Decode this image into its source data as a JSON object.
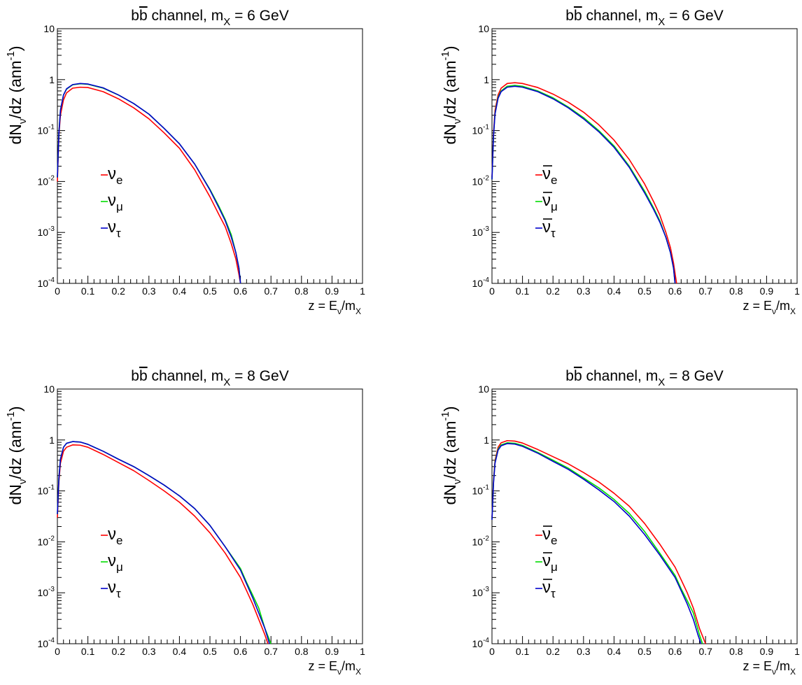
{
  "chart_data": [
    {
      "type": "line",
      "panel": "top-left",
      "title_left": "b",
      "title_bar": "b",
      "title_mid": " channel, m",
      "title_sub": "X",
      "title_right": " = 6 GeV",
      "ylabel_main": "dN",
      "ylabel_sub": "ν",
      "ylabel_rest": "/dz (ann",
      "ylabel_sup": "-1",
      "ylabel_end": ")",
      "xlabel_main": "z = E",
      "xlabel_sub1": "ν",
      "xlabel_mid": "/m",
      "xlabel_sub2": "X",
      "y_scale": "log",
      "xlim": [
        0,
        1
      ],
      "ylim": [
        0.0001,
        10
      ],
      "x_ticks": [
        "0",
        "0.1",
        "0.2",
        "0.3",
        "0.4",
        "0.5",
        "0.6",
        "0.7",
        "0.8",
        "0.9",
        "1"
      ],
      "y_ticks": [
        {
          "base": "10",
          "exp": "-4"
        },
        {
          "base": "10",
          "exp": "-3"
        },
        {
          "base": "10",
          "exp": "-2"
        },
        {
          "base": "10",
          "exp": "-1"
        },
        {
          "base": "1",
          "exp": ""
        },
        {
          "base": "10",
          "exp": ""
        }
      ],
      "legend_position": "lower-left",
      "series": [
        {
          "name": "νe",
          "sym": "ν",
          "sub": "e",
          "bar": false,
          "color": "#ff0000",
          "x": [
            0.0,
            0.005,
            0.01,
            0.02,
            0.03,
            0.05,
            0.075,
            0.1,
            0.15,
            0.2,
            0.25,
            0.3,
            0.35,
            0.4,
            0.45,
            0.5,
            0.53,
            0.55,
            0.57,
            0.585,
            0.595,
            0.6
          ],
          "y": [
            0.01,
            0.08,
            0.2,
            0.4,
            0.55,
            0.68,
            0.71,
            0.7,
            0.58,
            0.42,
            0.28,
            0.17,
            0.09,
            0.045,
            0.017,
            0.005,
            0.0022,
            0.0013,
            0.0006,
            0.0003,
            0.00015,
            0.0001
          ]
        },
        {
          "name": "νμ",
          "sym": "ν",
          "sub": "μ",
          "bar": false,
          "color": "#00dd00",
          "x": [
            0.0,
            0.005,
            0.01,
            0.02,
            0.03,
            0.05,
            0.075,
            0.1,
            0.15,
            0.2,
            0.25,
            0.3,
            0.35,
            0.4,
            0.45,
            0.5,
            0.53,
            0.55,
            0.57,
            0.585,
            0.595,
            0.6
          ],
          "y": [
            0.012,
            0.09,
            0.25,
            0.5,
            0.65,
            0.79,
            0.83,
            0.81,
            0.68,
            0.5,
            0.34,
            0.21,
            0.11,
            0.055,
            0.022,
            0.007,
            0.0032,
            0.0018,
            0.0009,
            0.0004,
            0.0002,
            0.0001
          ]
        },
        {
          "name": "ντ",
          "sym": "ν",
          "sub": "τ",
          "bar": false,
          "color": "#0000cc",
          "x": [
            0.0,
            0.005,
            0.01,
            0.02,
            0.03,
            0.05,
            0.075,
            0.1,
            0.15,
            0.2,
            0.25,
            0.3,
            0.35,
            0.4,
            0.45,
            0.5,
            0.53,
            0.55,
            0.57,
            0.585,
            0.595,
            0.6
          ],
          "y": [
            0.012,
            0.09,
            0.25,
            0.5,
            0.66,
            0.8,
            0.84,
            0.82,
            0.69,
            0.5,
            0.34,
            0.21,
            0.11,
            0.055,
            0.022,
            0.0068,
            0.003,
            0.0017,
            0.0008,
            0.0004,
            0.0002,
            0.0001
          ]
        }
      ]
    },
    {
      "type": "line",
      "panel": "top-right",
      "title_left": "b",
      "title_bar": "b",
      "title_mid": " channel, m",
      "title_sub": "X",
      "title_right": " = 6 GeV",
      "ylabel_main": "dN",
      "ylabel_sub": "ν",
      "ylabel_rest": "/dz (ann",
      "ylabel_sup": "-1",
      "ylabel_end": ")",
      "xlabel_main": "z = E",
      "xlabel_sub1": "ν",
      "xlabel_mid": "/m",
      "xlabel_sub2": "X",
      "y_scale": "log",
      "xlim": [
        0,
        1
      ],
      "ylim": [
        0.0001,
        10
      ],
      "x_ticks": [
        "0",
        "0.1",
        "0.2",
        "0.3",
        "0.4",
        "0.5",
        "0.6",
        "0.7",
        "0.8",
        "0.9",
        "1"
      ],
      "y_ticks": [
        {
          "base": "10",
          "exp": "-4"
        },
        {
          "base": "10",
          "exp": "-3"
        },
        {
          "base": "10",
          "exp": "-2"
        },
        {
          "base": "10",
          "exp": "-1"
        },
        {
          "base": "1",
          "exp": ""
        },
        {
          "base": "10",
          "exp": ""
        }
      ],
      "legend_position": "lower-left",
      "series": [
        {
          "name": "ν̄e",
          "sym": "ν",
          "sub": "e",
          "bar": true,
          "color": "#ff0000",
          "x": [
            0.0,
            0.005,
            0.01,
            0.02,
            0.03,
            0.05,
            0.075,
            0.1,
            0.15,
            0.2,
            0.25,
            0.3,
            0.35,
            0.4,
            0.45,
            0.5,
            0.53,
            0.55,
            0.57,
            0.585,
            0.595,
            0.605
          ],
          "y": [
            0.012,
            0.09,
            0.25,
            0.5,
            0.68,
            0.84,
            0.87,
            0.84,
            0.7,
            0.52,
            0.36,
            0.23,
            0.13,
            0.065,
            0.027,
            0.009,
            0.004,
            0.0022,
            0.001,
            0.0005,
            0.00025,
            0.0001
          ]
        },
        {
          "name": "ν̄μ",
          "sym": "ν",
          "sub": "μ",
          "bar": true,
          "color": "#00dd00",
          "x": [
            0.0,
            0.005,
            0.01,
            0.02,
            0.03,
            0.05,
            0.075,
            0.1,
            0.15,
            0.2,
            0.25,
            0.3,
            0.35,
            0.4,
            0.45,
            0.5,
            0.53,
            0.55,
            0.57,
            0.585,
            0.595,
            0.6
          ],
          "y": [
            0.011,
            0.08,
            0.22,
            0.45,
            0.6,
            0.74,
            0.77,
            0.74,
            0.6,
            0.44,
            0.29,
            0.18,
            0.1,
            0.05,
            0.02,
            0.0065,
            0.003,
            0.0017,
            0.0008,
            0.0004,
            0.0002,
            0.0001
          ]
        },
        {
          "name": "ν̄τ",
          "sym": "ν",
          "sub": "τ",
          "bar": true,
          "color": "#0000cc",
          "x": [
            0.0,
            0.005,
            0.01,
            0.02,
            0.03,
            0.05,
            0.075,
            0.1,
            0.15,
            0.2,
            0.25,
            0.3,
            0.35,
            0.4,
            0.45,
            0.5,
            0.53,
            0.55,
            0.57,
            0.585,
            0.595,
            0.6
          ],
          "y": [
            0.011,
            0.078,
            0.21,
            0.43,
            0.58,
            0.71,
            0.74,
            0.71,
            0.58,
            0.42,
            0.28,
            0.17,
            0.095,
            0.047,
            0.019,
            0.006,
            0.0028,
            0.0016,
            0.0008,
            0.0004,
            0.0002,
            0.0001
          ]
        }
      ]
    },
    {
      "type": "line",
      "panel": "bottom-left",
      "title_left": "b",
      "title_bar": "b",
      "title_mid": " channel, m",
      "title_sub": "X",
      "title_right": " = 8 GeV",
      "ylabel_main": "dN",
      "ylabel_sub": "ν",
      "ylabel_rest": "/dz (ann",
      "ylabel_sup": "-1",
      "ylabel_end": ")",
      "xlabel_main": "z = E",
      "xlabel_sub1": "ν",
      "xlabel_mid": "/m",
      "xlabel_sub2": "X",
      "y_scale": "log",
      "xlim": [
        0,
        1
      ],
      "ylim": [
        0.0001,
        10
      ],
      "x_ticks": [
        "0",
        "0.1",
        "0.2",
        "0.3",
        "0.4",
        "0.5",
        "0.6",
        "0.7",
        "0.8",
        "0.9",
        "1"
      ],
      "y_ticks": [
        {
          "base": "10",
          "exp": "-4"
        },
        {
          "base": "10",
          "exp": "-3"
        },
        {
          "base": "10",
          "exp": "-2"
        },
        {
          "base": "10",
          "exp": "-1"
        },
        {
          "base": "1",
          "exp": ""
        },
        {
          "base": "10",
          "exp": ""
        }
      ],
      "legend_position": "lower-left",
      "series": [
        {
          "name": "νe",
          "sym": "ν",
          "sub": "e",
          "bar": false,
          "color": "#ff0000",
          "x": [
            0.0,
            0.005,
            0.01,
            0.02,
            0.03,
            0.05,
            0.075,
            0.1,
            0.15,
            0.2,
            0.25,
            0.3,
            0.35,
            0.4,
            0.45,
            0.5,
            0.55,
            0.6,
            0.62,
            0.64,
            0.66,
            0.68,
            0.69
          ],
          "y": [
            0.03,
            0.15,
            0.35,
            0.6,
            0.72,
            0.8,
            0.79,
            0.72,
            0.52,
            0.36,
            0.25,
            0.16,
            0.1,
            0.06,
            0.032,
            0.015,
            0.006,
            0.002,
            0.0011,
            0.0006,
            0.0003,
            0.00015,
            0.0001
          ]
        },
        {
          "name": "νμ",
          "sym": "ν",
          "sub": "μ",
          "bar": false,
          "color": "#00dd00",
          "x": [
            0.0,
            0.005,
            0.01,
            0.02,
            0.03,
            0.05,
            0.075,
            0.1,
            0.15,
            0.2,
            0.25,
            0.3,
            0.35,
            0.4,
            0.45,
            0.5,
            0.55,
            0.6,
            0.62,
            0.64,
            0.66,
            0.68,
            0.7
          ],
          "y": [
            0.035,
            0.18,
            0.42,
            0.72,
            0.86,
            0.93,
            0.91,
            0.82,
            0.6,
            0.42,
            0.3,
            0.2,
            0.13,
            0.08,
            0.045,
            0.021,
            0.008,
            0.003,
            0.0016,
            0.0009,
            0.0005,
            0.0002,
            0.0001
          ]
        },
        {
          "name": "ντ",
          "sym": "ν",
          "sub": "τ",
          "bar": false,
          "color": "#0000cc",
          "x": [
            0.0,
            0.005,
            0.01,
            0.02,
            0.03,
            0.05,
            0.075,
            0.1,
            0.15,
            0.2,
            0.25,
            0.3,
            0.35,
            0.4,
            0.45,
            0.5,
            0.55,
            0.6,
            0.62,
            0.64,
            0.66,
            0.68,
            0.695
          ],
          "y": [
            0.035,
            0.18,
            0.42,
            0.72,
            0.86,
            0.93,
            0.91,
            0.82,
            0.6,
            0.42,
            0.3,
            0.2,
            0.13,
            0.08,
            0.045,
            0.021,
            0.008,
            0.0028,
            0.0015,
            0.0008,
            0.0004,
            0.0002,
            0.0001
          ]
        }
      ]
    },
    {
      "type": "line",
      "panel": "bottom-right",
      "title_left": "b",
      "title_bar": "b",
      "title_mid": " channel, m",
      "title_sub": "X",
      "title_right": " = 8 GeV",
      "ylabel_main": "dN",
      "ylabel_sub": "ν",
      "ylabel_rest": "/dz (ann",
      "ylabel_sup": "-1",
      "ylabel_end": ")",
      "xlabel_main": "z = E",
      "xlabel_sub1": "ν",
      "xlabel_mid": "/m",
      "xlabel_sub2": "X",
      "y_scale": "log",
      "xlim": [
        0,
        1
      ],
      "ylim": [
        0.0001,
        10
      ],
      "x_ticks": [
        "0",
        "0.1",
        "0.2",
        "0.3",
        "0.4",
        "0.5",
        "0.6",
        "0.7",
        "0.8",
        "0.9",
        "1"
      ],
      "y_ticks": [
        {
          "base": "10",
          "exp": "-4"
        },
        {
          "base": "10",
          "exp": "-3"
        },
        {
          "base": "10",
          "exp": "-2"
        },
        {
          "base": "10",
          "exp": "-1"
        },
        {
          "base": "1",
          "exp": ""
        },
        {
          "base": "10",
          "exp": ""
        }
      ],
      "legend_position": "lower-left",
      "series": [
        {
          "name": "ν̄e",
          "sym": "ν",
          "sub": "e",
          "bar": true,
          "color": "#ff0000",
          "x": [
            0.0,
            0.005,
            0.01,
            0.02,
            0.03,
            0.05,
            0.075,
            0.1,
            0.15,
            0.2,
            0.25,
            0.3,
            0.35,
            0.4,
            0.45,
            0.5,
            0.55,
            0.6,
            0.62,
            0.64,
            0.66,
            0.68,
            0.7
          ],
          "y": [
            0.03,
            0.16,
            0.4,
            0.72,
            0.88,
            0.97,
            0.95,
            0.87,
            0.65,
            0.47,
            0.34,
            0.23,
            0.15,
            0.09,
            0.05,
            0.023,
            0.009,
            0.0032,
            0.0018,
            0.001,
            0.0005,
            0.0002,
            0.0001
          ]
        },
        {
          "name": "ν̄μ",
          "sym": "ν",
          "sub": "μ",
          "bar": true,
          "color": "#00dd00",
          "x": [
            0.0,
            0.005,
            0.01,
            0.02,
            0.03,
            0.05,
            0.075,
            0.1,
            0.15,
            0.2,
            0.25,
            0.3,
            0.35,
            0.4,
            0.45,
            0.5,
            0.55,
            0.6,
            0.62,
            0.64,
            0.66,
            0.68,
            0.69
          ],
          "y": [
            0.028,
            0.15,
            0.37,
            0.66,
            0.8,
            0.88,
            0.86,
            0.78,
            0.57,
            0.4,
            0.28,
            0.18,
            0.115,
            0.068,
            0.036,
            0.016,
            0.006,
            0.0022,
            0.0012,
            0.0007,
            0.0004,
            0.00015,
            0.0001
          ]
        },
        {
          "name": "ν̄τ",
          "sym": "ν",
          "sub": "τ",
          "bar": true,
          "color": "#0000cc",
          "x": [
            0.0,
            0.005,
            0.01,
            0.02,
            0.03,
            0.05,
            0.075,
            0.1,
            0.15,
            0.2,
            0.25,
            0.3,
            0.35,
            0.4,
            0.45,
            0.5,
            0.55,
            0.6,
            0.62,
            0.64,
            0.66,
            0.675,
            0.685
          ],
          "y": [
            0.027,
            0.14,
            0.35,
            0.63,
            0.77,
            0.85,
            0.83,
            0.75,
            0.55,
            0.38,
            0.265,
            0.17,
            0.105,
            0.062,
            0.032,
            0.014,
            0.0055,
            0.002,
            0.0011,
            0.0006,
            0.0003,
            0.00015,
            0.0001
          ]
        }
      ]
    }
  ]
}
